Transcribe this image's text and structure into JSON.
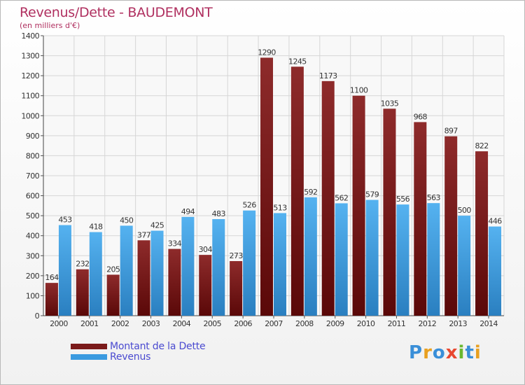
{
  "header": {
    "title": "Revenus/Dette - BAUDEMONT",
    "subtitle": "(en milliers d'€)"
  },
  "logo": {
    "text": "Proxiti",
    "colors": [
      "#3a8fd8",
      "#e8a020",
      "#3a8fd8",
      "#e84830",
      "#6ab830",
      "#3a8fd8",
      "#e8a020"
    ]
  },
  "chart_data": {
    "type": "bar",
    "categories": [
      "2000",
      "2001",
      "2002",
      "2003",
      "2004",
      "2005",
      "2006",
      "2007",
      "2008",
      "2009",
      "2010",
      "2011",
      "2012",
      "2013",
      "2014"
    ],
    "series": [
      {
        "name": "Montant de la Dette",
        "color": "#7a1a1a",
        "values": [
          164,
          232,
          205,
          377,
          334,
          304,
          273,
          1290,
          1245,
          1173,
          1100,
          1035,
          968,
          897,
          822
        ]
      },
      {
        "name": "Revenus",
        "color": "#3a9ae0",
        "values": [
          453,
          418,
          450,
          425,
          494,
          483,
          526,
          513,
          592,
          562,
          579,
          556,
          563,
          500,
          446
        ]
      }
    ],
    "yticks": [
      0,
      100,
      200,
      300,
      400,
      500,
      600,
      700,
      800,
      900,
      1000,
      1100,
      1200,
      1300,
      1400
    ],
    "ylim": [
      0,
      1400
    ],
    "grid": true,
    "legend_position": "bottom-left"
  }
}
